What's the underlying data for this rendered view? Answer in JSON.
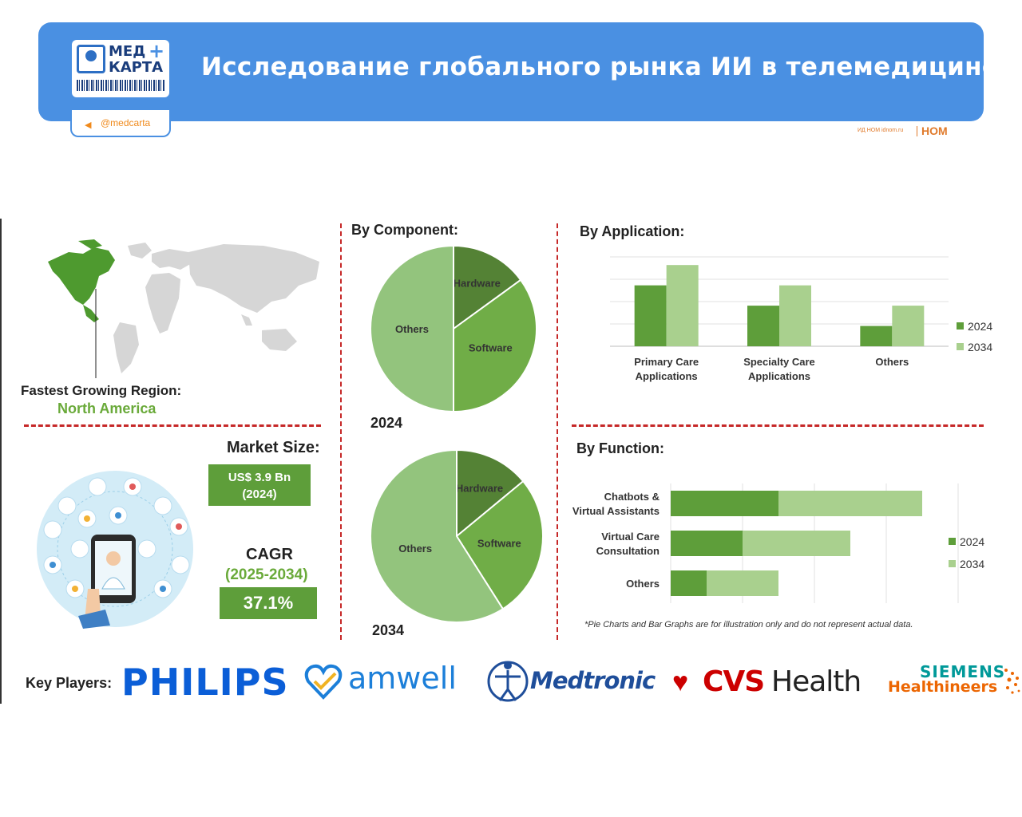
{
  "header": {
    "logo_line1": "МЕД",
    "logo_plus": "+",
    "logo_line2": "КАРТА",
    "title": "Исследование глобального рынка ИИ в телемедицине",
    "telegram_handle": "@medcarta",
    "credit_text": "ИД НОМ idnom.ru",
    "credit_logo": "НОМ"
  },
  "region": {
    "label": "Fastest Growing Region:",
    "value": "North America"
  },
  "market": {
    "size_label": "Market Size:",
    "size_value_line1": "US$ 3.9 Bn",
    "size_value_line2": "(2024)",
    "cagr_label": "CAGR",
    "cagr_range": "(2025-2034)",
    "cagr_value": "37.1%"
  },
  "sections": {
    "component": "By Component:",
    "application": "By  Application:",
    "function": "By Function:"
  },
  "note": "*Pie Charts and Bar Graphs are for illustration only and do not represent actual data.",
  "key_players": {
    "label": "Key Players:",
    "philips": "PHILIPS",
    "amwell": "amwell",
    "medtronic": "Medtronic",
    "cvs": "CVS",
    "health": "Health",
    "siemens": "SIEMENS",
    "healthineers": "Healthineers"
  },
  "colors": {
    "header_blue": "#4a90e2",
    "dark_green": "#5e9e3a",
    "light_green": "#a9d08e",
    "hardware_green": "#548235",
    "software_green": "#70ad47",
    "others_green": "#93c47d",
    "divider_red": "#c62828"
  },
  "chart_data": [
    {
      "type": "pie",
      "title": "2024",
      "labels": [
        "Hardware",
        "Software",
        "Others"
      ],
      "values": [
        15,
        35,
        50
      ]
    },
    {
      "type": "pie",
      "title": "2034",
      "labels": [
        "Hardware",
        "Software",
        "Others"
      ],
      "values": [
        14,
        27,
        59
      ]
    },
    {
      "type": "bar",
      "orientation": "vertical",
      "categories": [
        "Primary Care\nApplications",
        "Specialty Care\nApplications",
        "Others"
      ],
      "series": [
        {
          "name": "2024",
          "values": [
            3,
            2,
            1
          ]
        },
        {
          "name": "2034",
          "values": [
            4,
            3,
            2
          ]
        }
      ],
      "ylim": [
        0,
        4.4
      ],
      "grid": true,
      "legend": "right"
    },
    {
      "type": "bar",
      "orientation": "horizontal",
      "stacked": true,
      "categories": [
        "Chatbots &\nVirtual Assistants",
        "Virtual Care\nConsultation",
        "Others"
      ],
      "series": [
        {
          "name": "2024",
          "values": [
            3,
            2,
            1
          ]
        },
        {
          "name": "2034",
          "values": [
            4,
            3,
            2
          ]
        }
      ],
      "xlim": [
        0,
        8
      ],
      "grid": true,
      "legend": "right"
    }
  ]
}
